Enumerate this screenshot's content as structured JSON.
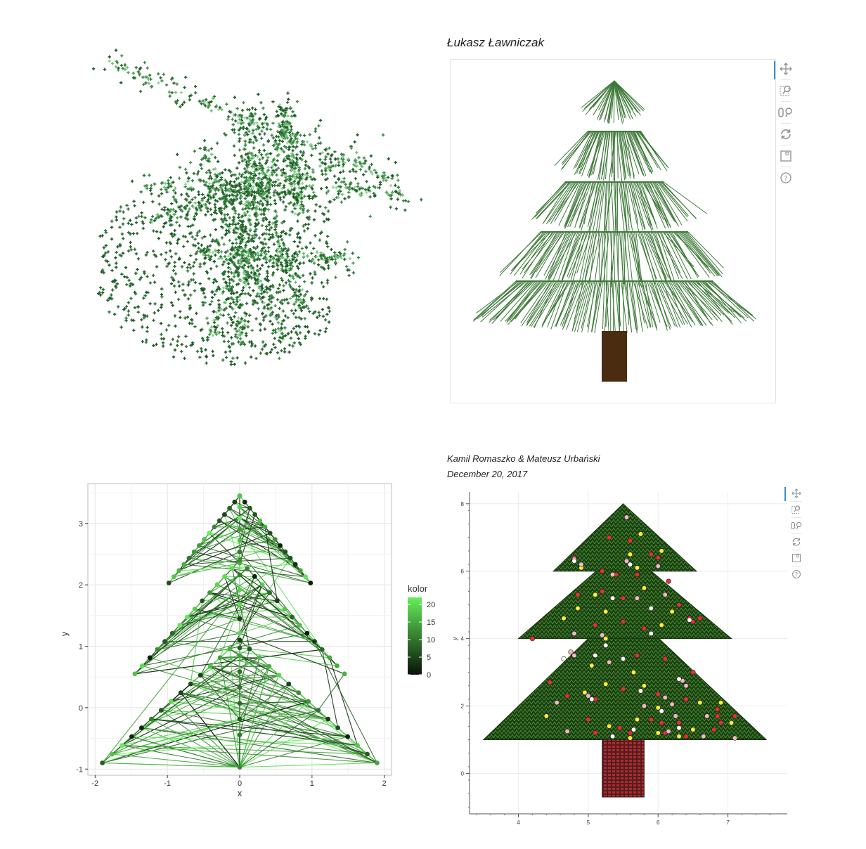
{
  "panel_top_right": {
    "author": "Łukasz Ławniczak",
    "toolbar": [
      "pan-icon",
      "box-zoom-icon",
      "wheel-zoom-icon",
      "reset-icon",
      "save-icon",
      "help-icon"
    ]
  },
  "panel_bottom_right": {
    "authors": "Kamil Romaszko & Mateusz Urbański",
    "date": "December 20, 2017",
    "toolbar": [
      "pan-icon",
      "box-zoom-icon",
      "wheel-zoom-icon",
      "reset-icon",
      "save-icon",
      "help-icon"
    ]
  },
  "colors": {
    "tree_green": "#3f7a3a",
    "trunk_brown": "#4a2c10",
    "dark_green_fill": "#1e4d14",
    "brick_red": "#a33035",
    "ornament_red": "#e53030",
    "ornament_yellow": "#ffee33",
    "ornament_pink": "#f2b8c6",
    "ornament_white": "#ffffff"
  },
  "chart_data": [
    {
      "type": "scatter",
      "id": "scatter-tree-3d",
      "title": "",
      "xlabel": "",
      "ylabel": "",
      "grid": false,
      "description_marker": "cross",
      "series": [
        {
          "values": []
        }
      ]
    },
    {
      "type": "line",
      "id": "bokeh-line-tree",
      "title": "",
      "xlabel": "",
      "ylabel": "",
      "grid": false,
      "tiers": 5
    },
    {
      "type": "line",
      "id": "ggplot-network-tree",
      "title": "",
      "xlabel": "x",
      "ylabel": "y",
      "xlim": [
        -2,
        2
      ],
      "ylim": [
        -1,
        3.5
      ],
      "x_ticks": [
        "-2",
        "-1",
        "0",
        "1",
        "2"
      ],
      "y_ticks": [
        "-1",
        "0",
        "1",
        "2",
        "3"
      ],
      "grid": true,
      "legend": {
        "title": "kolor",
        "placement": "right",
        "range": [
          0,
          22
        ],
        "ticks": [
          "20",
          "15",
          "10",
          "5",
          "0"
        ]
      },
      "tiers": [
        {
          "apex": [
            0,
            3.45
          ],
          "left": [
            -0.98,
            2.03
          ],
          "right": [
            0.98,
            2.03
          ]
        },
        {
          "apex": [
            0,
            2.4
          ],
          "left": [
            -1.45,
            0.55
          ],
          "right": [
            1.45,
            0.55
          ]
        },
        {
          "apex": [
            0,
            1.1
          ],
          "left": [
            -1.9,
            -0.9
          ],
          "right": [
            1.9,
            -0.9
          ]
        }
      ],
      "bottom_point": [
        0,
        -0.97
      ]
    },
    {
      "type": "scatter",
      "id": "bokeh-ornament-tree",
      "title": "",
      "xlabel": "",
      "ylabel": "y",
      "xlim": [
        3.4,
        7.75
      ],
      "ylim": [
        -1.2,
        8.3
      ],
      "x_ticks": [
        "4",
        "5",
        "6",
        "7"
      ],
      "y_ticks": [
        "0",
        "2",
        "4",
        "6",
        "8"
      ],
      "grid": true,
      "tiers": [
        {
          "top": [
            5.5,
            8.0
          ],
          "base_left": [
            4.5,
            6.0
          ],
          "base_right": [
            6.55,
            6.0
          ]
        },
        {
          "top": [
            5.5,
            6.7
          ],
          "base_left": [
            4.0,
            4.0
          ],
          "base_right": [
            7.05,
            4.0
          ]
        },
        {
          "top": [
            5.5,
            5.0
          ],
          "base_left": [
            3.5,
            1.0
          ],
          "base_right": [
            7.55,
            1.0
          ]
        }
      ],
      "trunk": {
        "x": [
          5.2,
          5.8
        ],
        "y": [
          -0.7,
          1.0
        ]
      },
      "ornaments": {
        "red": [
          [
            5.3,
            7.0
          ],
          [
            5.6,
            6.9
          ],
          [
            5.9,
            6.5
          ],
          [
            6.0,
            6.4
          ],
          [
            4.8,
            6.4
          ],
          [
            5.2,
            6.0
          ],
          [
            5.4,
            5.9
          ],
          [
            5.7,
            5.9
          ],
          [
            6.15,
            5.7
          ],
          [
            5.2,
            5.4
          ],
          [
            4.85,
            5.3
          ],
          [
            5.5,
            5.2
          ],
          [
            6.3,
            5.0
          ],
          [
            5.1,
            4.4
          ],
          [
            5.5,
            4.5
          ],
          [
            4.2,
            4.0
          ],
          [
            6.5,
            4.5
          ],
          [
            6.45,
            4.6
          ],
          [
            6.6,
            4.6
          ],
          [
            5.8,
            4.3
          ],
          [
            5.7,
            3.5
          ],
          [
            6.1,
            3.4
          ],
          [
            6.5,
            3.0
          ],
          [
            4.45,
            2.7
          ],
          [
            4.7,
            2.3
          ],
          [
            5.1,
            2.2
          ],
          [
            5.5,
            2.5
          ],
          [
            6.0,
            2.35
          ],
          [
            6.4,
            2.2
          ],
          [
            6.85,
            1.9
          ],
          [
            5.0,
            1.6
          ],
          [
            5.45,
            1.35
          ],
          [
            5.9,
            1.6
          ],
          [
            6.05,
            1.5
          ],
          [
            6.3,
            1.5
          ],
          [
            6.85,
            1.7
          ],
          [
            7.1,
            1.7
          ],
          [
            5.1,
            1.2
          ],
          [
            5.35,
            1.1
          ],
          [
            5.6,
            1.2
          ],
          [
            6.1,
            1.2
          ],
          [
            6.4,
            1.1
          ],
          [
            6.8,
            1.3
          ],
          [
            6.9,
            1.5
          ]
        ],
        "yellow": [
          [
            5.75,
            7.1
          ],
          [
            5.6,
            6.5
          ],
          [
            6.05,
            6.6
          ],
          [
            4.9,
            6.1
          ],
          [
            5.7,
            6.1
          ],
          [
            5.8,
            5.5
          ],
          [
            5.1,
            5.3
          ],
          [
            4.85,
            4.9
          ],
          [
            5.25,
            4.8
          ],
          [
            4.65,
            4.6
          ],
          [
            6.05,
            4.4
          ],
          [
            5.25,
            4.0
          ],
          [
            6.2,
            4.8
          ],
          [
            5.05,
            3.2
          ],
          [
            5.65,
            3.0
          ],
          [
            4.95,
            2.4
          ],
          [
            5.25,
            2.65
          ],
          [
            5.8,
            2.6
          ],
          [
            6.0,
            1.95
          ],
          [
            6.6,
            2.1
          ],
          [
            6.9,
            2.1
          ],
          [
            4.4,
            1.7
          ],
          [
            5.3,
            1.4
          ],
          [
            5.7,
            1.6
          ],
          [
            5.6,
            1.05
          ],
          [
            6.0,
            1.2
          ],
          [
            6.3,
            1.1
          ],
          [
            6.5,
            1.3
          ],
          [
            7.05,
            1.5
          ]
        ],
        "pink": [
          [
            5.55,
            7.6
          ],
          [
            4.8,
            6.35
          ],
          [
            4.9,
            6.2
          ],
          [
            5.55,
            6.3
          ],
          [
            6.0,
            6.15
          ],
          [
            5.35,
            5.9
          ],
          [
            5.7,
            5.2
          ],
          [
            6.1,
            5.3
          ],
          [
            4.8,
            4.15
          ],
          [
            5.2,
            4.1
          ],
          [
            4.75,
            3.6
          ],
          [
            4.8,
            3.5
          ],
          [
            5.3,
            3.3
          ],
          [
            6.35,
            2.75
          ],
          [
            6.4,
            2.6
          ],
          [
            6.2,
            2.05
          ],
          [
            5.0,
            2.3
          ],
          [
            4.55,
            2.1
          ],
          [
            5.8,
            2.0
          ],
          [
            6.1,
            2.25
          ],
          [
            6.7,
            1.7
          ],
          [
            6.25,
            1.7
          ],
          [
            4.7,
            1.25
          ],
          [
            6.15,
            1.25
          ],
          [
            6.65,
            1.1
          ],
          [
            7.1,
            1.05
          ]
        ],
        "white": [
          [
            4.8,
            6.3
          ],
          [
            5.6,
            6.2
          ],
          [
            5.35,
            5.2
          ],
          [
            5.9,
            4.9
          ],
          [
            5.1,
            3.5
          ],
          [
            5.25,
            3.8
          ],
          [
            5.5,
            3.4
          ],
          [
            4.65,
            3.4
          ],
          [
            6.3,
            2.8
          ],
          [
            5.75,
            2.45
          ],
          [
            6.05,
            1.85
          ],
          [
            6.3,
            1.35
          ],
          [
            5.05,
            2.2
          ],
          [
            5.35,
            1.1
          ],
          [
            5.65,
            1.3
          ],
          [
            5.9,
            4.15
          ],
          [
            6.45,
            4.55
          ]
        ]
      }
    }
  ]
}
